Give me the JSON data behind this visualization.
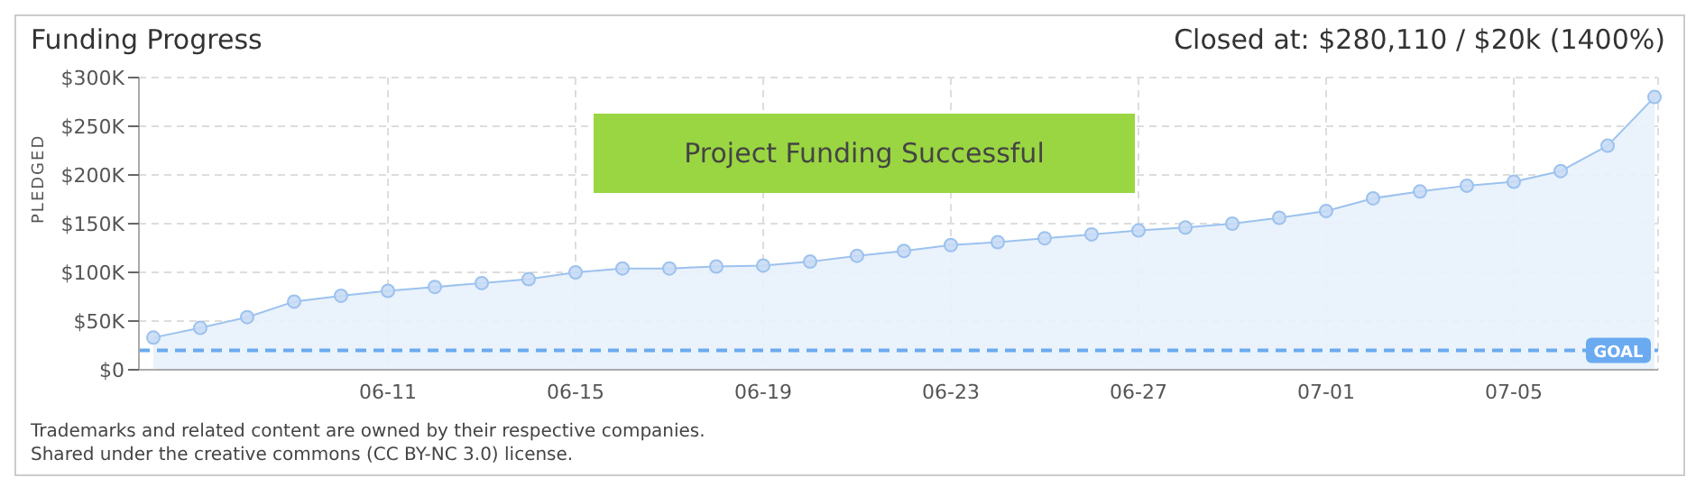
{
  "chart_data": {
    "type": "area",
    "title": "Funding Progress",
    "subtitle": "Closed at: $280,110 / $20k (1400%)",
    "ylabel": "PLEDGED",
    "categories": [
      null,
      null,
      null,
      null,
      null,
      "06-11",
      null,
      null,
      null,
      "06-15",
      null,
      null,
      null,
      "06-19",
      null,
      null,
      null,
      "06-23",
      null,
      null,
      null,
      "06-27",
      null,
      null,
      null,
      "07-01",
      null,
      null,
      null,
      "07-05",
      null,
      null,
      null
    ],
    "series": [
      {
        "color": "#9cc2ee",
        "values": [
          33000,
          43000,
          54000,
          70000,
          76000,
          81000,
          85000,
          89000,
          93000,
          100000,
          104000,
          104000,
          106000,
          107000,
          111000,
          117000,
          122000,
          128000,
          131000,
          135000,
          139000,
          143000,
          146000,
          150000,
          156000,
          163000,
          176000,
          183000,
          189000,
          193000,
          204000,
          230000,
          280000
        ]
      }
    ],
    "ylim": [
      0,
      300000
    ],
    "yticks": [
      {
        "value": 0,
        "label": "$0"
      },
      {
        "value": 50000,
        "label": "$50K"
      },
      {
        "value": 100000,
        "label": "$100K"
      },
      {
        "value": 150000,
        "label": "$150K"
      },
      {
        "value": 200000,
        "label": "$200K"
      },
      {
        "value": 250000,
        "label": "$250K"
      },
      {
        "value": 300000,
        "label": "$300K"
      }
    ],
    "grid": true,
    "marker": "circle",
    "ref_lines": [
      {
        "axis": "y",
        "value": 20000,
        "label": "GOAL",
        "color": "#6aaaf0",
        "line_style": "dashed"
      }
    ],
    "annotations": [
      "Project Funding Successful",
      "Trademarks and related content are owned by their respective companies.",
      "Shared under the creative commons (CC BY-NC 3.0) license."
    ]
  }
}
